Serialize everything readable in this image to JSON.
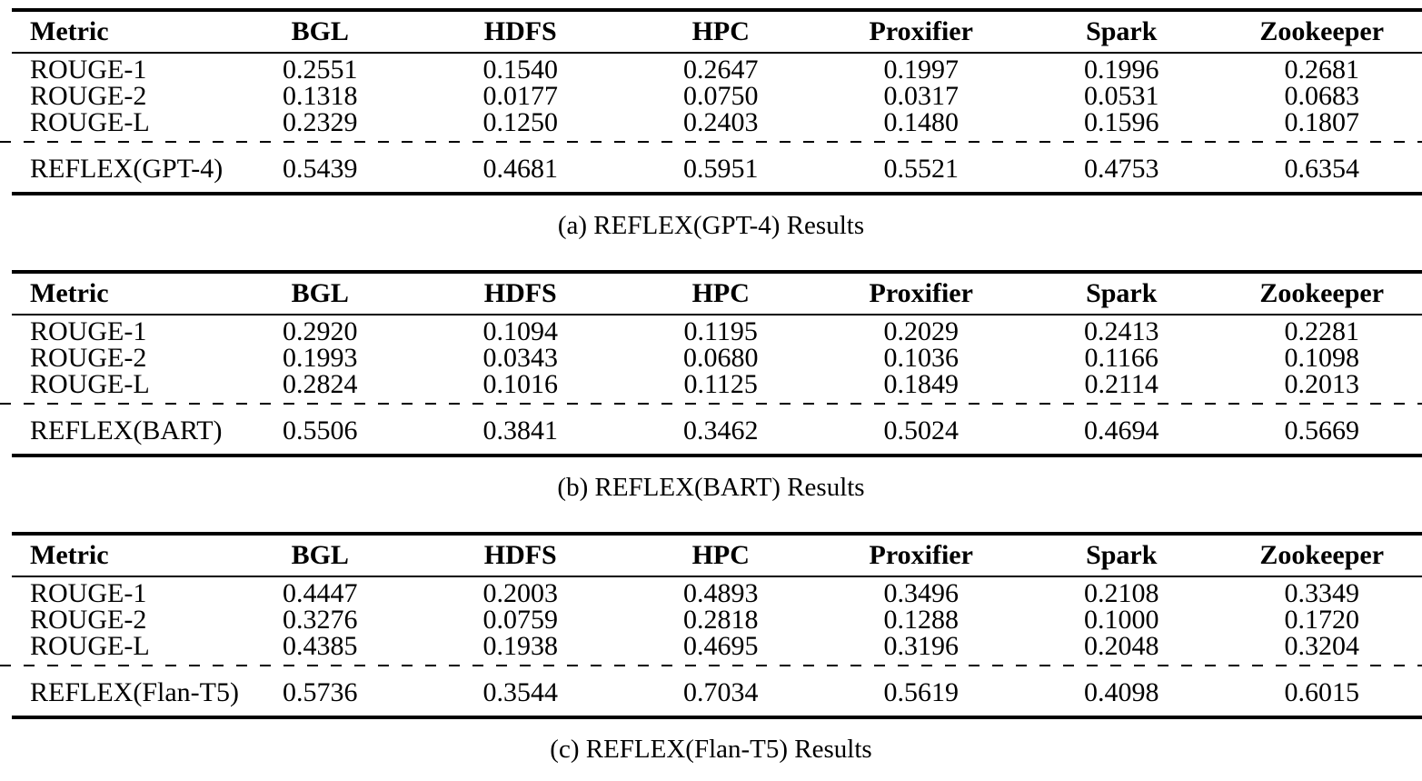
{
  "page": {
    "background_color": "#ffffff",
    "text_color": "#000000"
  },
  "tables": [
    {
      "id": "a",
      "caption": "(a) REFLEX(GPT-4) Results",
      "columns": [
        "Metric",
        "BGL",
        "HDFS",
        "HPC",
        "Proxifier",
        "Spark",
        "Zookeeper"
      ],
      "rouge_rows": [
        {
          "label": "ROUGE-1",
          "values": [
            "0.2551",
            "0.1540",
            "0.2647",
            "0.1997",
            "0.1996",
            "0.2681"
          ]
        },
        {
          "label": "ROUGE-2",
          "values": [
            "0.1318",
            "0.0177",
            "0.0750",
            "0.0317",
            "0.0531",
            "0.0683"
          ]
        },
        {
          "label": "ROUGE-L",
          "values": [
            "0.2329",
            "0.1250",
            "0.2403",
            "0.1480",
            "0.1596",
            "0.1807"
          ]
        }
      ],
      "summary_row": {
        "label": "REFLEX(GPT-4)",
        "values": [
          "0.5439",
          "0.4681",
          "0.5951",
          "0.5521",
          "0.4753",
          "0.6354"
        ]
      }
    },
    {
      "id": "b",
      "caption": "(b) REFLEX(BART) Results",
      "columns": [
        "Metric",
        "BGL",
        "HDFS",
        "HPC",
        "Proxifier",
        "Spark",
        "Zookeeper"
      ],
      "rouge_rows": [
        {
          "label": "ROUGE-1",
          "values": [
            "0.2920",
            "0.1094",
            "0.1195",
            "0.2029",
            "0.2413",
            "0.2281"
          ]
        },
        {
          "label": "ROUGE-2",
          "values": [
            "0.1993",
            "0.0343",
            "0.0680",
            "0.1036",
            "0.1166",
            "0.1098"
          ]
        },
        {
          "label": "ROUGE-L",
          "values": [
            "0.2824",
            "0.1016",
            "0.1125",
            "0.1849",
            "0.2114",
            "0.2013"
          ]
        }
      ],
      "summary_row": {
        "label": "REFLEX(BART)",
        "values": [
          "0.5506",
          "0.3841",
          "0.3462",
          "0.5024",
          "0.4694",
          "0.5669"
        ]
      }
    },
    {
      "id": "c",
      "caption": "(c) REFLEX(Flan-T5) Results",
      "columns": [
        "Metric",
        "BGL",
        "HDFS",
        "HPC",
        "Proxifier",
        "Spark",
        "Zookeeper"
      ],
      "rouge_rows": [
        {
          "label": "ROUGE-1",
          "values": [
            "0.4447",
            "0.2003",
            "0.4893",
            "0.3496",
            "0.2108",
            "0.3349"
          ]
        },
        {
          "label": "ROUGE-2",
          "values": [
            "0.3276",
            "0.0759",
            "0.2818",
            "0.1288",
            "0.1000",
            "0.1720"
          ]
        },
        {
          "label": "ROUGE-L",
          "values": [
            "0.4385",
            "0.1938",
            "0.4695",
            "0.3196",
            "0.2048",
            "0.3204"
          ]
        }
      ],
      "summary_row": {
        "label": "REFLEX(Flan-T5)",
        "values": [
          "0.5736",
          "0.3544",
          "0.7034",
          "0.5619",
          "0.4098",
          "0.6015"
        ]
      }
    }
  ]
}
